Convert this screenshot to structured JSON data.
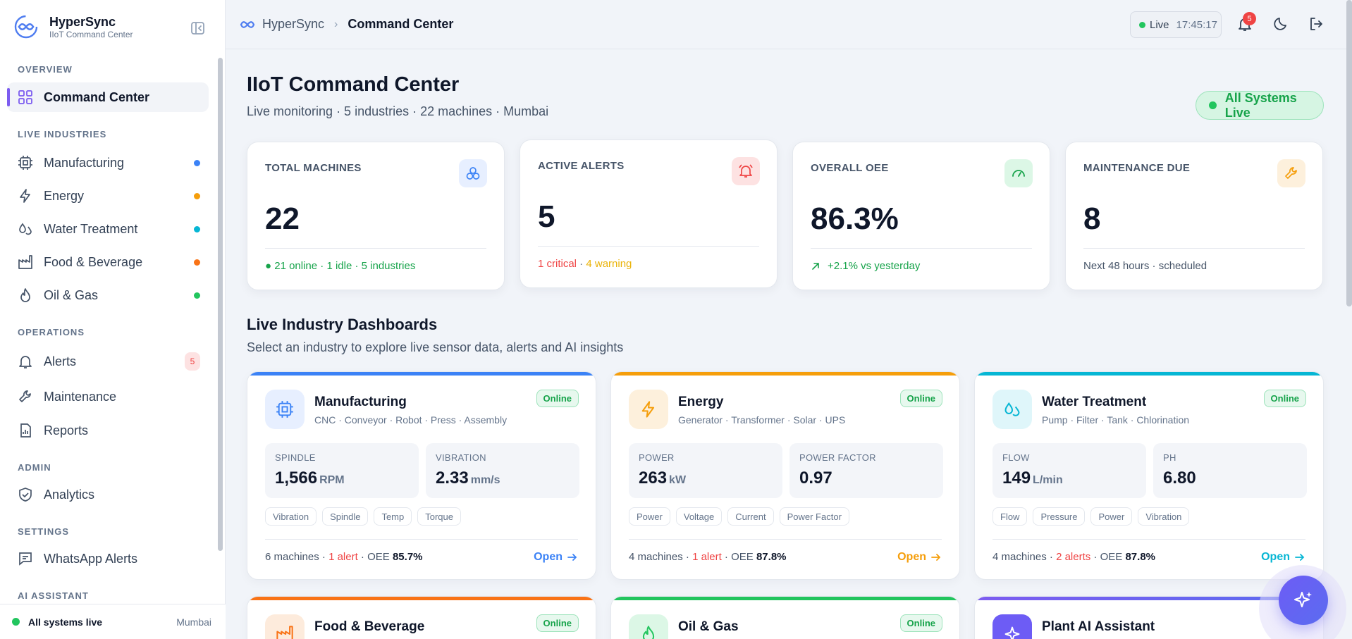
{
  "brand": {
    "name": "HyperSync",
    "subtitle": "IIoT Command Center"
  },
  "sidebar": {
    "sections": {
      "overview": "OVERVIEW",
      "live_industries": "LIVE INDUSTRIES",
      "operations": "OPERATIONS",
      "admin": "ADMIN",
      "settings": "SETTINGS",
      "ai_assistant": "AI ASSISTANT"
    },
    "items": {
      "command_center": "Command Center",
      "manufacturing": "Manufacturing",
      "energy": "Energy",
      "water_treatment": "Water Treatment",
      "food_beverage": "Food & Beverage",
      "oil_gas": "Oil & Gas",
      "alerts": "Alerts",
      "maintenance": "Maintenance",
      "reports": "Reports",
      "analytics": "Analytics",
      "whatsapp_alerts": "WhatsApp Alerts"
    },
    "alerts_count": "5",
    "industry_dot_colors": {
      "manufacturing": "#3b82f6",
      "energy": "#f59e0b",
      "water_treatment": "#06b6d4",
      "food_beverage": "#f97316",
      "oil_gas": "#22c55e"
    },
    "footer": {
      "status": "All systems live",
      "city": "Mumbai"
    }
  },
  "topbar": {
    "breadcrumb_home": "HyperSync",
    "breadcrumb_current": "Command Center",
    "live_label": "Live",
    "live_time": "17:45:17",
    "notification_count": "5",
    "icons": [
      "bell-icon",
      "moon-icon",
      "logout-icon"
    ]
  },
  "header": {
    "title": "IIoT Command Center",
    "subtitle": "Live monitoring · 5 industries · 22 machines · Mumbai",
    "status_pill": "All Systems Live"
  },
  "stats": [
    {
      "label": "TOTAL MACHINES",
      "value": "22",
      "footer": "● 21 online · 1 idle · 5 industries",
      "icon": "cluster-icon"
    },
    {
      "label": "ACTIVE ALERTS",
      "value": "5",
      "footer_critical": "1 critical",
      "footer_sep": " · ",
      "footer_warning": "4 warning",
      "icon": "bell-ring-icon"
    },
    {
      "label": "OVERALL OEE",
      "value": "86.3%",
      "footer": "+2.1% vs yesterday",
      "icon": "gauge-icon"
    },
    {
      "label": "MAINTENANCE DUE",
      "value": "8",
      "footer": "Next 48 hours · scheduled",
      "icon": "wrench-icon"
    }
  ],
  "industries_section": {
    "title": "Live Industry Dashboards",
    "subtitle": "Select an industry to explore live sensor data, alerts and AI insights"
  },
  "industries": [
    {
      "name": "Manufacturing",
      "desc": "CNC · Conveyor · Robot · Press · Assembly",
      "status": "Online",
      "accent": "#3b82f6",
      "metrics": [
        {
          "label": "SPINDLE",
          "value": "1,566",
          "unit": "RPM"
        },
        {
          "label": "VIBRATION",
          "value": "2.33",
          "unit": "mm/s"
        }
      ],
      "tags": [
        "Vibration",
        "Spindle",
        "Temp",
        "Torque"
      ],
      "machines": "6 machines",
      "alerts": "1 alert",
      "oee_label": "OEE",
      "oee": "85.7%",
      "open": "Open"
    },
    {
      "name": "Energy",
      "desc": "Generator · Transformer · Solar · UPS",
      "status": "Online",
      "accent": "#f59e0b",
      "metrics": [
        {
          "label": "POWER",
          "value": "263",
          "unit": "kW"
        },
        {
          "label": "POWER FACTOR",
          "value": "0.97",
          "unit": ""
        }
      ],
      "tags": [
        "Power",
        "Voltage",
        "Current",
        "Power Factor"
      ],
      "machines": "4 machines",
      "alerts": "1 alert",
      "oee_label": "OEE",
      "oee": "87.8%",
      "open": "Open"
    },
    {
      "name": "Water Treatment",
      "desc": "Pump · Filter · Tank · Chlorination",
      "status": "Online",
      "accent": "#06b6d4",
      "metrics": [
        {
          "label": "FLOW",
          "value": "149",
          "unit": "L/min"
        },
        {
          "label": "PH",
          "value": "6.80",
          "unit": ""
        }
      ],
      "tags": [
        "Flow",
        "Pressure",
        "Power",
        "Vibration"
      ],
      "machines": "4 machines",
      "alerts": "2 alerts",
      "oee_label": "OEE",
      "oee": "87.8%",
      "open": "Open"
    },
    {
      "name": "Food & Beverage",
      "status": "Online",
      "accent": "#f97316"
    },
    {
      "name": "Oil & Gas",
      "status": "Online",
      "accent": "#22c55e"
    },
    {
      "name": "Plant AI Assistant",
      "accent": "#7c5cf0"
    }
  ]
}
